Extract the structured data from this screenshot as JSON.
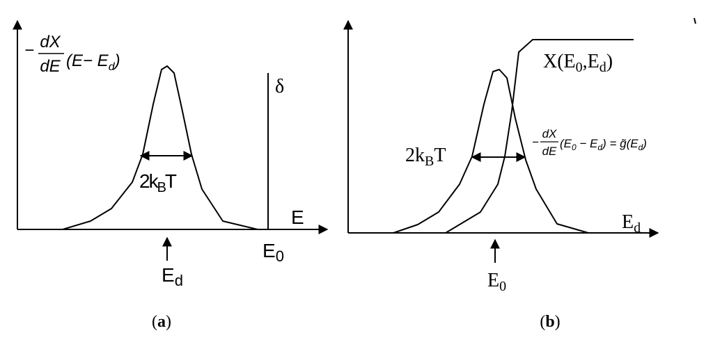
{
  "panels": [
    {
      "caption": {
        "open": "(",
        "letter": "a",
        "close": ")"
      },
      "y_label": {
        "sign": "−",
        "numerator": "dX",
        "denominator": "dE",
        "open": "(E− E",
        "sub": "d",
        "close": ")"
      },
      "delta": "δ",
      "x_label": "E",
      "e0": {
        "main": "E",
        "sub": "0"
      },
      "peak": {
        "main": "E",
        "sub": "d"
      },
      "width": {
        "prefix": "2k",
        "sub": "B",
        "suffix": "T"
      }
    },
    {
      "caption": {
        "open": "(",
        "letter": "b",
        "close": ")"
      },
      "curve_label": {
        "open": "X(E",
        "sub1": "0",
        "mid": ",E",
        "sub2": "d",
        "close": ")"
      },
      "width": {
        "prefix": "2k",
        "sub": "B",
        "suffix": "T"
      },
      "formula": {
        "sign": "−",
        "numerator": "dX",
        "denominator": "dE",
        "open": "(E",
        "sub1": "0",
        "mid": " − E",
        "sub2": "d",
        "eq": ") = g̃(E",
        "sub3": "d",
        "close": ")"
      },
      "x_label": {
        "main": "E",
        "sub": "d"
      },
      "peak": {
        "main": "E",
        "sub": "0"
      }
    }
  ]
}
